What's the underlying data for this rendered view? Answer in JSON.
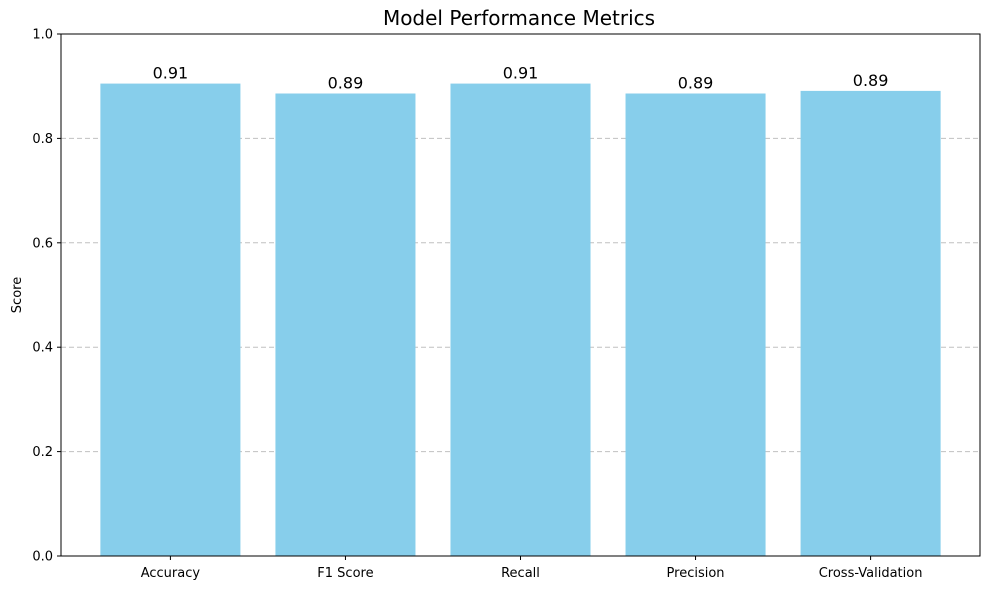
{
  "chart_data": {
    "type": "bar",
    "title": "Model Performance Metrics",
    "xlabel": "",
    "ylabel": "Score",
    "categories": [
      "Accuracy",
      "F1 Score",
      "Recall",
      "Precision",
      "Cross-Validation"
    ],
    "values": [
      0.905,
      0.886,
      0.905,
      0.886,
      0.891
    ],
    "data_labels": [
      "0.91",
      "0.89",
      "0.91",
      "0.89",
      "0.89"
    ],
    "ylim": [
      0,
      1.0
    ],
    "yticks": [
      0.0,
      0.2,
      0.4,
      0.6,
      0.8,
      1.0
    ],
    "ytick_labels": [
      "0.0",
      "0.2",
      "0.4",
      "0.6",
      "0.8",
      "1.0"
    ],
    "grid": "y-dashed",
    "bar_color": "#87CEEB",
    "grid_color": "#c0c0c0"
  }
}
